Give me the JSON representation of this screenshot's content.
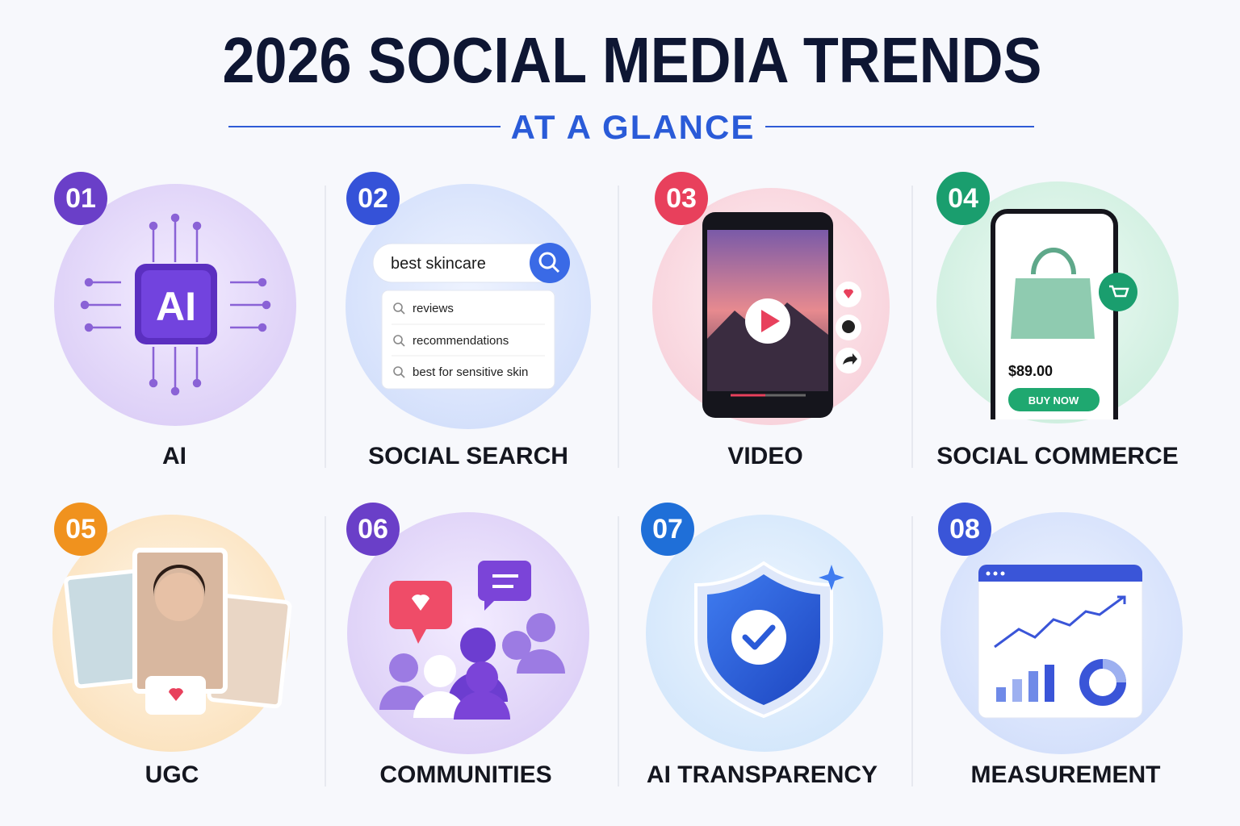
{
  "header": {
    "title": "2026 SOCIAL MEDIA TRENDS",
    "subtitle": "AT A GLANCE"
  },
  "trends": [
    {
      "number": "01",
      "label": "AI",
      "chip": "AI"
    },
    {
      "number": "02",
      "label": "SOCIAL SEARCH",
      "search_query": "best skincare",
      "suggestions": [
        "reviews",
        "recommendations",
        "best for sensitive skin"
      ]
    },
    {
      "number": "03",
      "label": "VIDEO"
    },
    {
      "number": "04",
      "label": "SOCIAL COMMERCE",
      "price": "$89.00",
      "button": "BUY NOW"
    },
    {
      "number": "05",
      "label": "UGC"
    },
    {
      "number": "06",
      "label": "COMMUNITIES"
    },
    {
      "number": "07",
      "label": "AI TRANSPARENCY"
    },
    {
      "number": "08",
      "label": "MEASUREMENT"
    }
  ]
}
